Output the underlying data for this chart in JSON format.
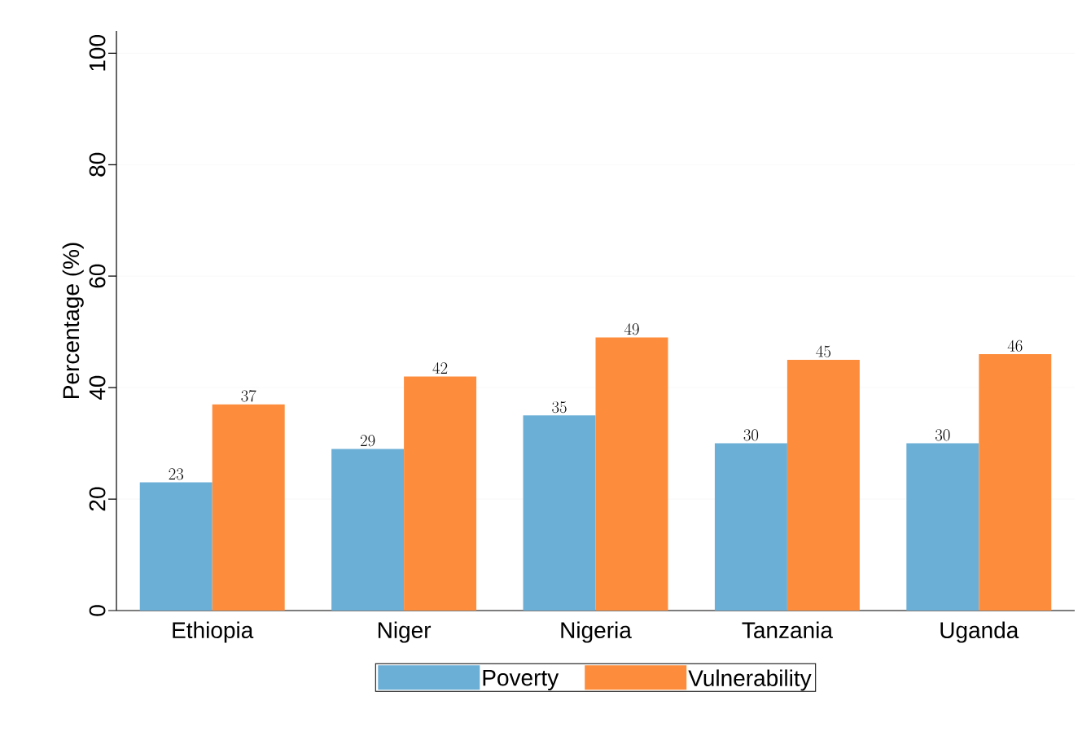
{
  "chart_data": {
    "type": "bar",
    "ylabel": "Percentage (%)",
    "categories": [
      "Ethiopia",
      "Niger",
      "Nigeria",
      "Tanzania",
      "Uganda"
    ],
    "series": [
      {
        "name": "Poverty",
        "color": "#6baed6",
        "values": [
          23,
          29,
          35,
          30,
          30
        ]
      },
      {
        "name": "Vulnerability",
        "color": "#fd8d3c",
        "values": [
          37,
          42,
          49,
          45,
          46
        ]
      }
    ],
    "ylim": [
      0,
      104
    ],
    "yticks": [
      0,
      20,
      40,
      60,
      80,
      100
    ],
    "grid": "y",
    "legend": "bottom",
    "data_labels": true
  }
}
